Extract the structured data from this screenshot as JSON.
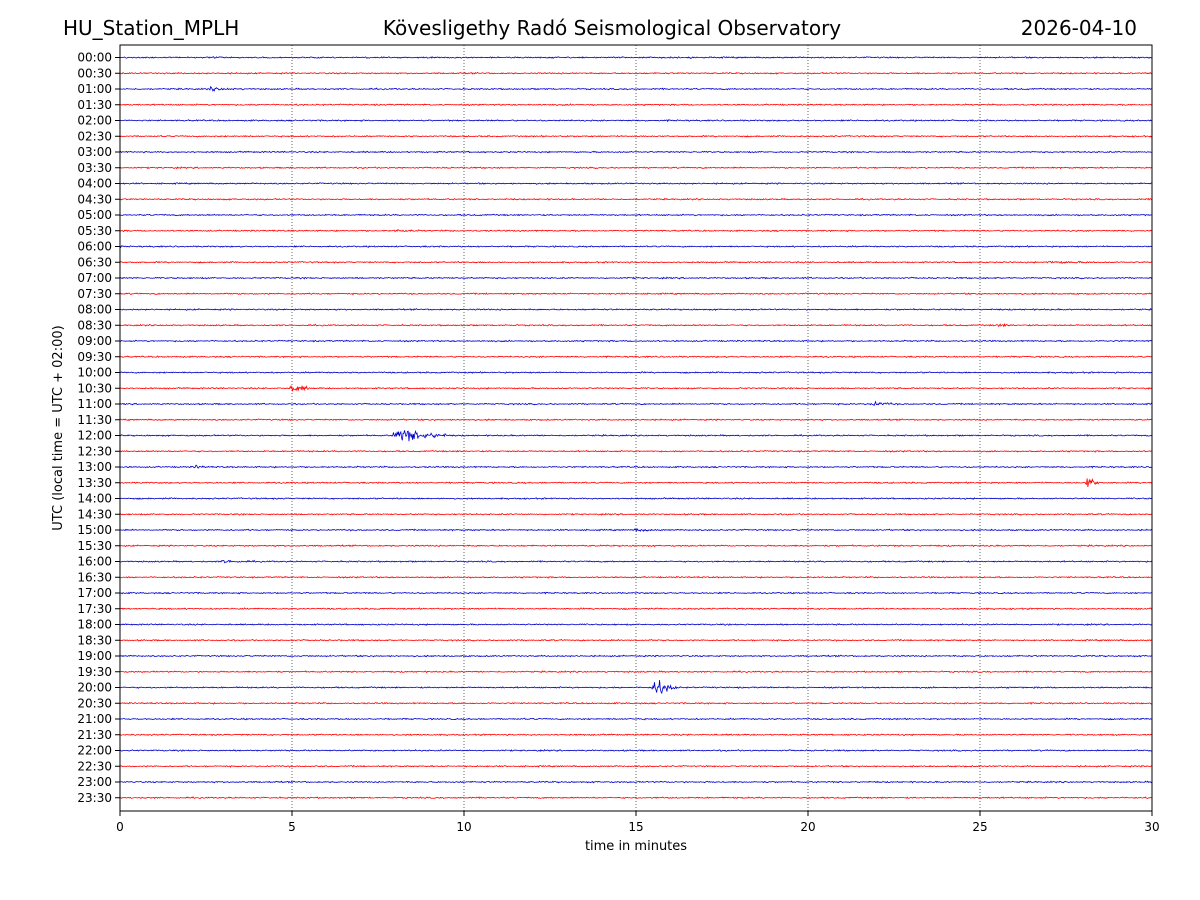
{
  "header": {
    "station": "HU_Station_MPLH",
    "observatory": "Kövesligethy Radó Seismological Observatory",
    "date": "2026-04-10"
  },
  "chart_data": {
    "type": "helicorder",
    "title": "Kövesligethy Radó Seismological Observatory",
    "xlabel": "time in minutes",
    "ylabel": "UTC (local time = UTC + 02:00)",
    "xlim": [
      0,
      30
    ],
    "xticks": [
      0,
      5,
      10,
      15,
      20,
      25,
      30
    ],
    "vertical_grid": "dotted at each 5 minutes",
    "colors": {
      "even_rows": "#0000cc",
      "odd_rows": "#ff0000"
    },
    "rows": [
      "00:00",
      "00:30",
      "01:00",
      "01:30",
      "02:00",
      "02:30",
      "03:00",
      "03:30",
      "04:00",
      "04:30",
      "05:00",
      "05:30",
      "06:00",
      "06:30",
      "07:00",
      "07:30",
      "08:00",
      "08:30",
      "09:00",
      "09:30",
      "10:00",
      "10:30",
      "11:00",
      "11:30",
      "12:00",
      "12:30",
      "13:00",
      "13:30",
      "14:00",
      "14:30",
      "15:00",
      "15:30",
      "16:00",
      "16:30",
      "17:00",
      "17:30",
      "18:00",
      "18:30",
      "19:00",
      "19:30",
      "20:00",
      "20:30",
      "21:00",
      "21:30",
      "22:00",
      "22:30",
      "23:00",
      "23:30"
    ],
    "events": [
      {
        "row": "01:00",
        "minute": 2.6,
        "duration_min": 1.0,
        "amplitude": 0.25
      },
      {
        "row": "05:30",
        "minute": 8.0,
        "duration_min": 0.8,
        "amplitude": 0.15
      },
      {
        "row": "06:30",
        "minute": 27.0,
        "duration_min": 1.5,
        "amplitude": 0.2
      },
      {
        "row": "08:30",
        "minute": 25.5,
        "duration_min": 0.6,
        "amplitude": 0.25
      },
      {
        "row": "10:30",
        "minute": 5.0,
        "duration_min": 0.6,
        "amplitude": 0.9
      },
      {
        "row": "11:00",
        "minute": 21.8,
        "duration_min": 0.8,
        "amplitude": 0.5
      },
      {
        "row": "12:00",
        "minute": 8.0,
        "duration_min": 1.5,
        "amplitude": 1.6
      },
      {
        "row": "13:00",
        "minute": 2.2,
        "duration_min": 0.3,
        "amplitude": 0.3
      },
      {
        "row": "13:30",
        "minute": 28.1,
        "duration_min": 0.4,
        "amplitude": 1.4
      },
      {
        "row": "15:00",
        "minute": 15.0,
        "duration_min": 0.7,
        "amplitude": 0.2
      },
      {
        "row": "16:00",
        "minute": 3.0,
        "duration_min": 0.9,
        "amplitude": 0.25
      },
      {
        "row": "20:00",
        "minute": 15.5,
        "duration_min": 0.7,
        "amplitude": 2.0
      }
    ]
  }
}
